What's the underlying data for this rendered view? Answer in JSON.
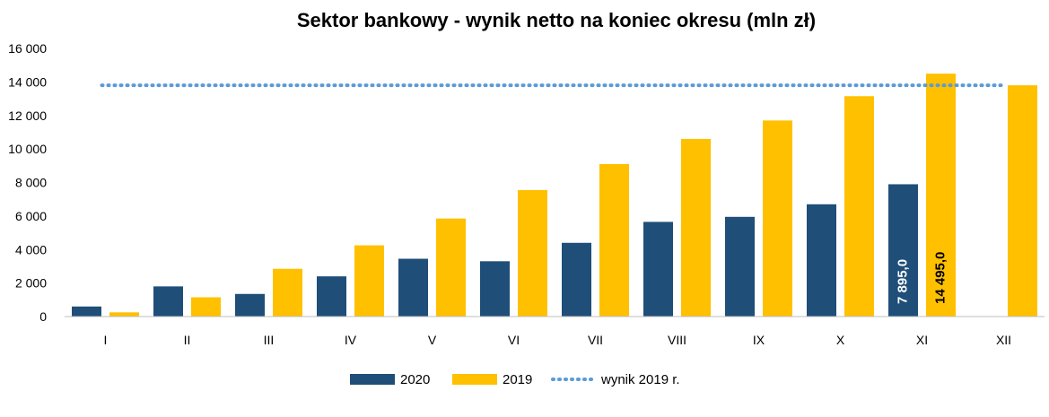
{
  "chart_data": {
    "type": "bar",
    "title": "Sektor bankowy - wynik netto na koniec okresu (mln zł)",
    "categories": [
      "I",
      "II",
      "III",
      "IV",
      "V",
      "VI",
      "VII",
      "VIII",
      "IX",
      "X",
      "XI",
      "XII"
    ],
    "series": [
      {
        "name": "2020",
        "color": "#1f4e79",
        "values": [
          600,
          1800,
          1350,
          2400,
          3450,
          3300,
          4400,
          5650,
          5950,
          6700,
          7895.0,
          null
        ]
      },
      {
        "name": "2019",
        "color": "#ffc000",
        "values": [
          250,
          1150,
          2850,
          4250,
          5850,
          7550,
          9100,
          10600,
          11700,
          13150,
          14495.0,
          13800
        ]
      }
    ],
    "reference_line": {
      "name": "wynik 2019 r.",
      "value": 13800,
      "color": "#5b9bd5",
      "style": "dotted"
    },
    "data_labels": [
      {
        "series": "2020",
        "category": "XI",
        "text": "7 895,0",
        "color": "#ffffff"
      },
      {
        "series": "2019",
        "category": "XI",
        "text": "14 495,0",
        "color": "#000000"
      }
    ],
    "yticks": [
      "0",
      "2 000",
      "4 000",
      "6 000",
      "8 000",
      "10 000",
      "12 000",
      "14 000",
      "16 000"
    ],
    "ylim": [
      0,
      16000
    ],
    "xlabel": "",
    "ylabel": "",
    "grid": false,
    "legend_position": "bottom"
  }
}
